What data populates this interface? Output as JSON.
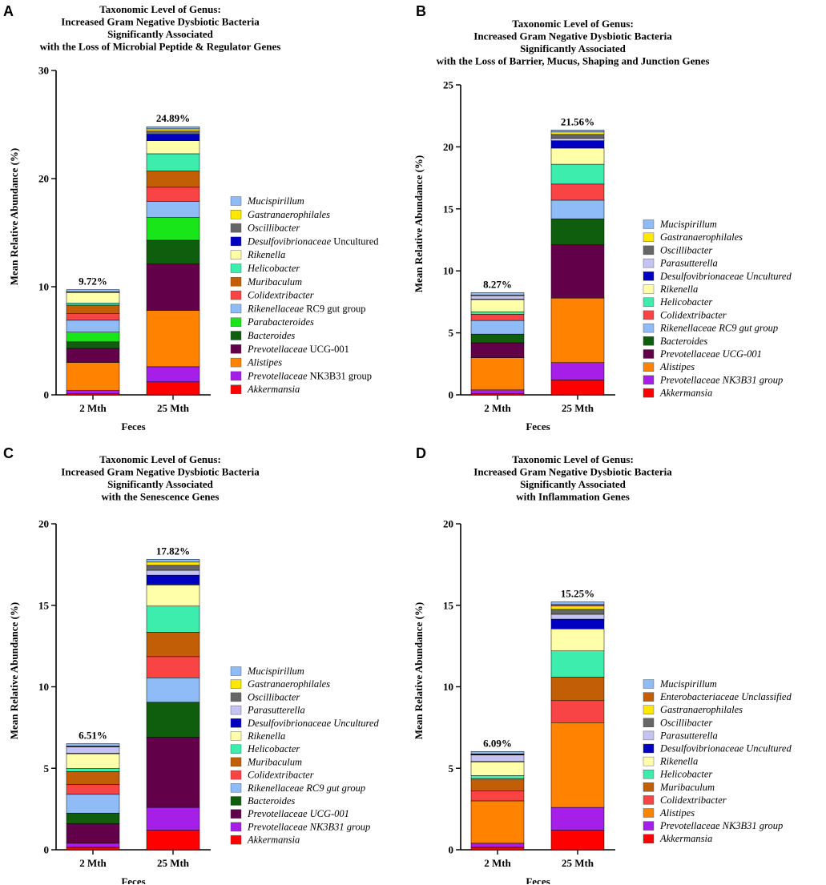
{
  "chart_data": [
    {
      "type": "bar",
      "stacked": true,
      "panel_label": "A",
      "title": [
        "Taxonomic Level of Genus:",
        "Increased Gram Negative Dysbiotic Bacteria",
        "Significantly Associated",
        "with the Loss of Microbial Peptide & Regulator Genes"
      ],
      "ylabel": "Mean Relative Abundance (%)",
      "xlabel": "Feces",
      "ylim": [
        0,
        30
      ],
      "yticks": [
        0,
        10,
        20,
        30
      ],
      "categories": [
        "2 Mth",
        "25 Mth"
      ],
      "totals": [
        "9.72%",
        "24.89%"
      ],
      "series": [
        {
          "name": "Akkermansia",
          "italic": "Akkermansia",
          "rest": "",
          "color": "#FF0000",
          "values": [
            0.1,
            1.2
          ]
        },
        {
          "name": "Prevotellaceae NK3B31 group",
          "italic": "Prevotellaceae",
          "rest": " NK3B31 group",
          "color": "#A61FE8",
          "values": [
            0.3,
            1.4
          ]
        },
        {
          "name": "Alistipes",
          "italic": "Alistipes",
          "rest": "",
          "color": "#FF8200",
          "values": [
            2.6,
            5.2
          ]
        },
        {
          "name": "Prevotellaceae UCG-001",
          "italic": "Prevotellaceae",
          "rest": " UCG-001",
          "color": "#62004A",
          "values": [
            1.3,
            4.3
          ]
        },
        {
          "name": "Bacteroides",
          "italic": "Bacteroides",
          "rest": "",
          "color": "#0E5E0E",
          "values": [
            0.6,
            2.2
          ]
        },
        {
          "name": "Parabacteroides",
          "italic": "Parabacteroides",
          "rest": "",
          "color": "#19E619",
          "values": [
            0.9,
            2.1
          ]
        },
        {
          "name": "Rikenellaceae RC9 gut group",
          "italic": "Rikenellaceae",
          "rest": " RC9 gut group",
          "color": "#8FBCF6",
          "values": [
            1.1,
            1.5
          ]
        },
        {
          "name": "Colidextribacter",
          "italic": "Colidextribacter",
          "rest": "",
          "color": "#F84444",
          "values": [
            0.6,
            1.3
          ]
        },
        {
          "name": "Muribaculum",
          "italic": "Muribaculum",
          "rest": "",
          "color": "#C25E06",
          "values": [
            0.8,
            1.5
          ]
        },
        {
          "name": "Helicobacter",
          "italic": "Helicobacter",
          "rest": "",
          "color": "#3DEDAE",
          "values": [
            0.2,
            1.6
          ]
        },
        {
          "name": "Rikenella",
          "italic": "Rikenella",
          "rest": "",
          "color": "#FFFFAA",
          "values": [
            1.0,
            1.2
          ]
        },
        {
          "name": "Desulfovibrionaceae Uncultured",
          "italic": "Desulfovibrionaceae",
          "rest": " Uncultured",
          "color": "#0000C0",
          "values": [
            0.01,
            0.6
          ]
        },
        {
          "name": "Oscillibacter",
          "italic": "Oscillibacter",
          "rest": "",
          "color": "#666666",
          "values": [
            0.01,
            0.3
          ]
        },
        {
          "name": "Gastranaerophilales",
          "italic": "Gastranaerophilales",
          "rest": "",
          "color": "#FFE800",
          "values": [
            0.01,
            0.2
          ]
        },
        {
          "name": "Mucispirillum",
          "italic": "Mucispirillum",
          "rest": "",
          "color": "#8FBCF6",
          "values": [
            0.2,
            0.2
          ]
        }
      ]
    },
    {
      "type": "bar",
      "stacked": true,
      "panel_label": "B",
      "title": [
        "Taxonomic Level of Genus:",
        "Increased Gram Negative Dysbiotic Bacteria",
        "Significantly Associated",
        "with the Loss of Barrier, Mucus, Shaping and Junction Genes"
      ],
      "ylabel": "Mean Relative Abundance (%)",
      "xlabel": "Feces",
      "ylim": [
        0,
        25
      ],
      "yticks": [
        0,
        5,
        10,
        15,
        20,
        25
      ],
      "categories": [
        "2 Mth",
        "25 Mth"
      ],
      "totals": [
        "8.27%",
        "21.56%"
      ],
      "series": [
        {
          "name": "Akkermansia",
          "italic": "Akkermansia",
          "rest": "",
          "color": "#FF0000",
          "values": [
            0.1,
            1.2
          ]
        },
        {
          "name": "Prevotellaceae NK3B31 group",
          "italic": "Prevotellaceae NK3B31 group",
          "rest": "",
          "color": "#A61FE8",
          "values": [
            0.3,
            1.4
          ]
        },
        {
          "name": "Alistipes",
          "italic": "Alistipes",
          "rest": "",
          "color": "#FF8200",
          "values": [
            2.6,
            5.2
          ]
        },
        {
          "name": "Prevotellaceae UCG-001",
          "italic": "Prevotellaceae UCG-001",
          "rest": "",
          "color": "#62004A",
          "values": [
            1.2,
            4.3
          ]
        },
        {
          "name": "Bacteroides",
          "italic": "Bacteroides",
          "rest": "",
          "color": "#0E5E0E",
          "values": [
            0.7,
            2.1
          ]
        },
        {
          "name": "Rikenellaceae RC9 gut group",
          "italic": "Rikenellaceae RC9 gut group",
          "rest": "",
          "color": "#8FBCF6",
          "values": [
            1.1,
            1.5
          ]
        },
        {
          "name": "Colidextribacter",
          "italic": "Colidextribacter",
          "rest": "",
          "color": "#F84444",
          "values": [
            0.5,
            1.3
          ]
        },
        {
          "name": "Helicobacter",
          "italic": "Helicobacter",
          "rest": "",
          "color": "#3DEDAE",
          "values": [
            0.2,
            1.6
          ]
        },
        {
          "name": "Rikenella",
          "italic": "Rikenella",
          "rest": "",
          "color": "#FFFFAA",
          "values": [
            1.0,
            1.3
          ]
        },
        {
          "name": "Desulfovibrionaceae Uncultured",
          "italic": "Desulfovibrionaceae Uncultured",
          "rest": "",
          "color": "#0000C0",
          "values": [
            0.02,
            0.6
          ]
        },
        {
          "name": "Parasutterella",
          "italic": "Parasutterella",
          "rest": "",
          "color": "#C5C3F2",
          "values": [
            0.3,
            0.2
          ]
        },
        {
          "name": "Oscillibacter",
          "italic": "Oscillibacter",
          "rest": "",
          "color": "#666666",
          "values": [
            0.01,
            0.3
          ]
        },
        {
          "name": "Gastranaerophilales",
          "italic": "Gastranaerophilales",
          "rest": "",
          "color": "#FFE800",
          "values": [
            0.01,
            0.2
          ]
        },
        {
          "name": "Mucispirillum",
          "italic": "Mucispirillum",
          "rest": "",
          "color": "#8FBCF6",
          "values": [
            0.2,
            0.16
          ]
        }
      ]
    },
    {
      "type": "bar",
      "stacked": true,
      "panel_label": "C",
      "title": [
        "Taxonomic Level of Genus:",
        "Increased Gram Negative Dysbiotic Bacteria",
        "Significantly Associated",
        "with the Senescence Genes"
      ],
      "ylabel": "Mean Relative Abundance (%)",
      "xlabel": "Feces",
      "ylim": [
        0,
        20
      ],
      "yticks": [
        0,
        5,
        10,
        15,
        20
      ],
      "categories": [
        "2 Mth",
        "25 Mth"
      ],
      "totals": [
        "6.51%",
        "17.82%"
      ],
      "series": [
        {
          "name": "Akkermansia",
          "italic": "Akkermansia",
          "rest": "",
          "color": "#FF0000",
          "values": [
            0.15,
            1.2
          ]
        },
        {
          "name": "Prevotellaceae NK3B31 group",
          "italic": "Prevotellaceae NK3B31 group",
          "rest": "",
          "color": "#A61FE8",
          "values": [
            0.25,
            1.4
          ]
        },
        {
          "name": "Prevotellaceae UCG-001",
          "italic": "Prevotellaceae UCG-001",
          "rest": "",
          "color": "#62004A",
          "values": [
            1.2,
            4.3
          ]
        },
        {
          "name": "Bacteroides",
          "italic": "Bacteroides",
          "rest": "",
          "color": "#0E5E0E",
          "values": [
            0.65,
            2.15
          ]
        },
        {
          "name": "Rikenellaceae RC9 gut group",
          "italic": "Rikenellaceae RC9 gut group",
          "rest": "",
          "color": "#8FBCF6",
          "values": [
            1.15,
            1.5
          ]
        },
        {
          "name": "Colidextribacter",
          "italic": "Colidextribacter",
          "rest": "",
          "color": "#F84444",
          "values": [
            0.6,
            1.3
          ]
        },
        {
          "name": "Muribaculum",
          "italic": "Muribaculum",
          "rest": "",
          "color": "#C25E06",
          "values": [
            0.8,
            1.5
          ]
        },
        {
          "name": "Helicobacter",
          "italic": "Helicobacter",
          "rest": "",
          "color": "#3DEDAE",
          "values": [
            0.2,
            1.6
          ]
        },
        {
          "name": "Rikenella",
          "italic": "Rikenella",
          "rest": "",
          "color": "#FFFFAA",
          "values": [
            0.9,
            1.3
          ]
        },
        {
          "name": "Desulfovibrionaceae Uncultured",
          "italic": "Desulfovibrionaceae Uncultured",
          "rest": "",
          "color": "#0000C0",
          "values": [
            0.02,
            0.6
          ]
        },
        {
          "name": "Parasutterella",
          "italic": "Parasutterella",
          "rest": "",
          "color": "#C5C3F2",
          "values": [
            0.4,
            0.3
          ]
        },
        {
          "name": "Oscillibacter",
          "italic": "Oscillibacter",
          "rest": "",
          "color": "#666666",
          "values": [
            0.02,
            0.3
          ]
        },
        {
          "name": "Gastranaerophilales",
          "italic": "Gastranaerophilales",
          "rest": "",
          "color": "#FFE800",
          "values": [
            0.02,
            0.2
          ]
        },
        {
          "name": "Mucispirillum",
          "italic": "Mucispirillum",
          "rest": "",
          "color": "#8FBCF6",
          "values": [
            0.15,
            0.17
          ]
        }
      ]
    },
    {
      "type": "bar",
      "stacked": true,
      "panel_label": "D",
      "title": [
        "Taxonomic Level of Genus:",
        "Increased Gram Negative Dysbiotic Bacteria",
        "Significantly Associated",
        "with Inflammation Genes"
      ],
      "ylabel": "Mean Relative Abundance (%)",
      "xlabel": "Feces",
      "ylim": [
        0,
        20
      ],
      "yticks": [
        0,
        5,
        10,
        15,
        20
      ],
      "categories": [
        "2 Mth",
        "25 Mth"
      ],
      "totals": [
        "6.09%",
        "15.25%"
      ],
      "series": [
        {
          "name": "Akkermansia",
          "italic": "Akkermansia",
          "rest": "",
          "color": "#FF0000",
          "values": [
            0.15,
            1.2
          ]
        },
        {
          "name": "Prevotellaceae NK3B31 group",
          "italic": "Prevotellaceae NK3B31 group",
          "rest": "",
          "color": "#A61FE8",
          "values": [
            0.25,
            1.4
          ]
        },
        {
          "name": "Alistipes",
          "italic": "Alistipes",
          "rest": "",
          "color": "#FF8200",
          "values": [
            2.6,
            5.2
          ]
        },
        {
          "name": "Colidextribacter",
          "italic": "Colidextribacter",
          "rest": "",
          "color": "#F84444",
          "values": [
            0.6,
            1.35
          ]
        },
        {
          "name": "Muribaculum",
          "italic": "Muribaculum",
          "rest": "",
          "color": "#C25E06",
          "values": [
            0.75,
            1.45
          ]
        },
        {
          "name": "Helicobacter",
          "italic": "Helicobacter",
          "rest": "",
          "color": "#3DEDAE",
          "values": [
            0.2,
            1.6
          ]
        },
        {
          "name": "Rikenella",
          "italic": "Rikenella",
          "rest": "",
          "color": "#FFFFAA",
          "values": [
            0.85,
            1.35
          ]
        },
        {
          "name": "Desulfovibrionaceae Uncultured",
          "italic": "Desulfovibrionaceae Uncultured",
          "rest": "",
          "color": "#0000C0",
          "values": [
            0.02,
            0.6
          ]
        },
        {
          "name": "Parasutterella",
          "italic": "Parasutterella",
          "rest": "",
          "color": "#C5C3F2",
          "values": [
            0.4,
            0.3
          ]
        },
        {
          "name": "Oscillibacter",
          "italic": "Oscillibacter",
          "rest": "",
          "color": "#666666",
          "values": [
            0.02,
            0.3
          ]
        },
        {
          "name": "Gastranaerophilales",
          "italic": "Gastranaerophilales",
          "rest": "",
          "color": "#FFE800",
          "values": [
            0.02,
            0.2
          ]
        },
        {
          "name": "Enterobacteriaceae Unclassified",
          "italic": "Enterobacteriaceae Unclassified",
          "rest": "",
          "color": "#C25E06",
          "values": [
            0.02,
            0.1
          ]
        },
        {
          "name": "Mucispirillum",
          "italic": "Mucispirillum",
          "rest": "",
          "color": "#8FBCF6",
          "values": [
            0.15,
            0.16
          ]
        }
      ]
    }
  ]
}
